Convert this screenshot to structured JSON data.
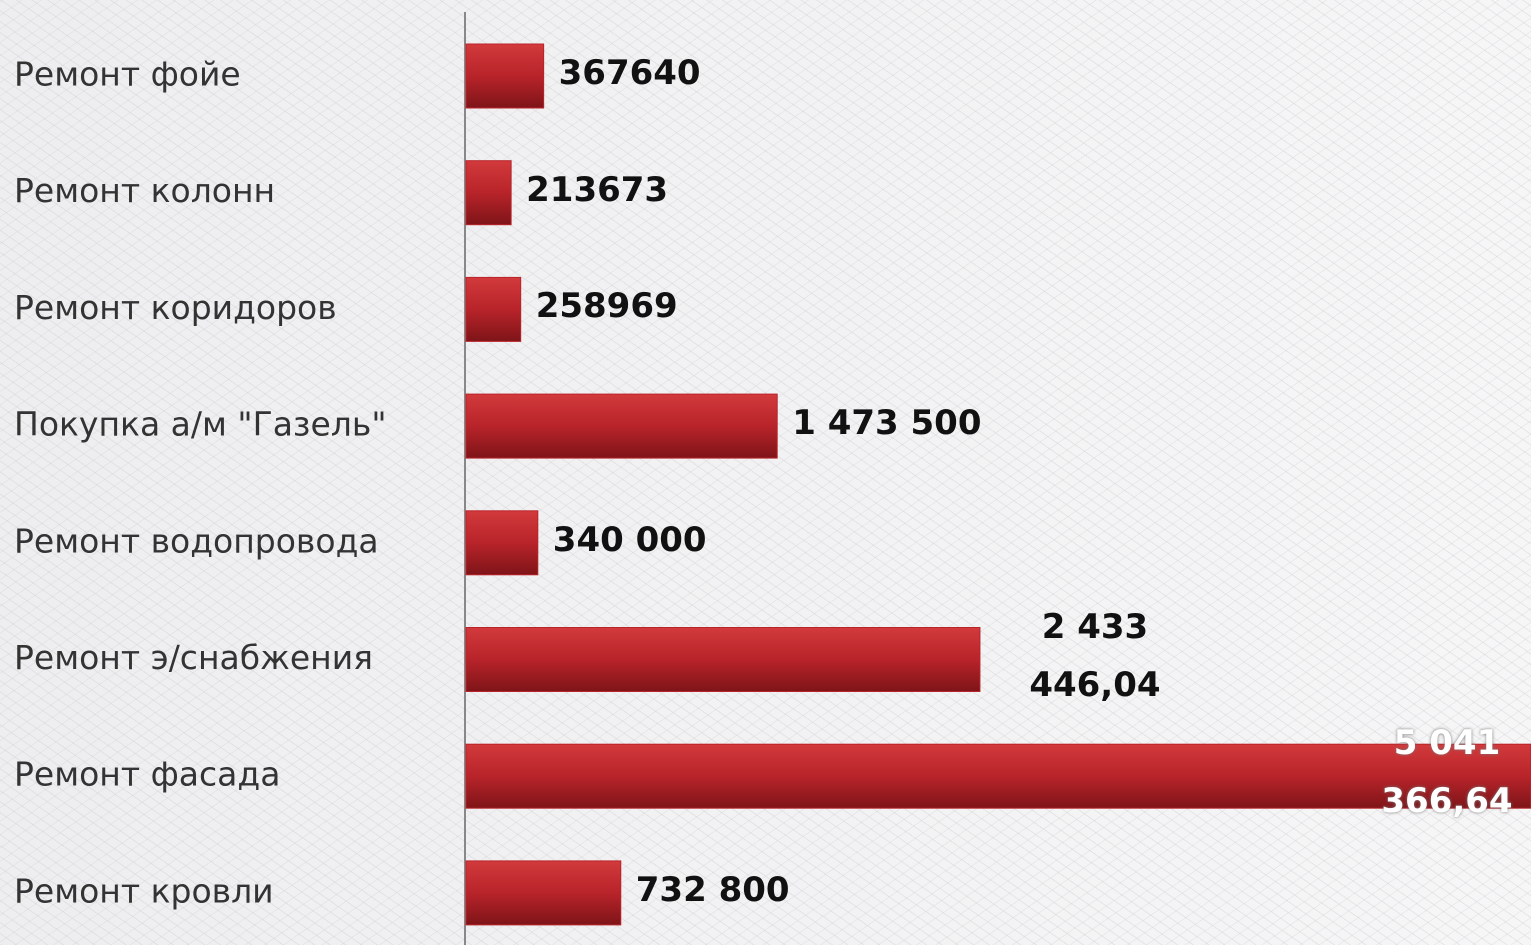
{
  "chart_data": {
    "type": "bar",
    "orientation": "horizontal",
    "categories": [
      "Ремонт фойе",
      "Ремонт колонн",
      "Ремонт коридоров",
      "Покупка а/м \"Газель\"",
      "Ремонт водопровода",
      "Ремонт э/снабжения",
      "Ремонт фасада",
      "Ремонт кровли"
    ],
    "values": [
      367640,
      213673,
      258969,
      1473500,
      340000,
      2433446.04,
      5041366.64,
      732800
    ],
    "value_labels": [
      "367640",
      "213673",
      "258969",
      "1 473 500",
      "340 000",
      "2 433 446,04",
      "5 041 366,64",
      "732 800"
    ],
    "color": "#b8242a",
    "xlim": [
      0,
      5000000
    ]
  }
}
